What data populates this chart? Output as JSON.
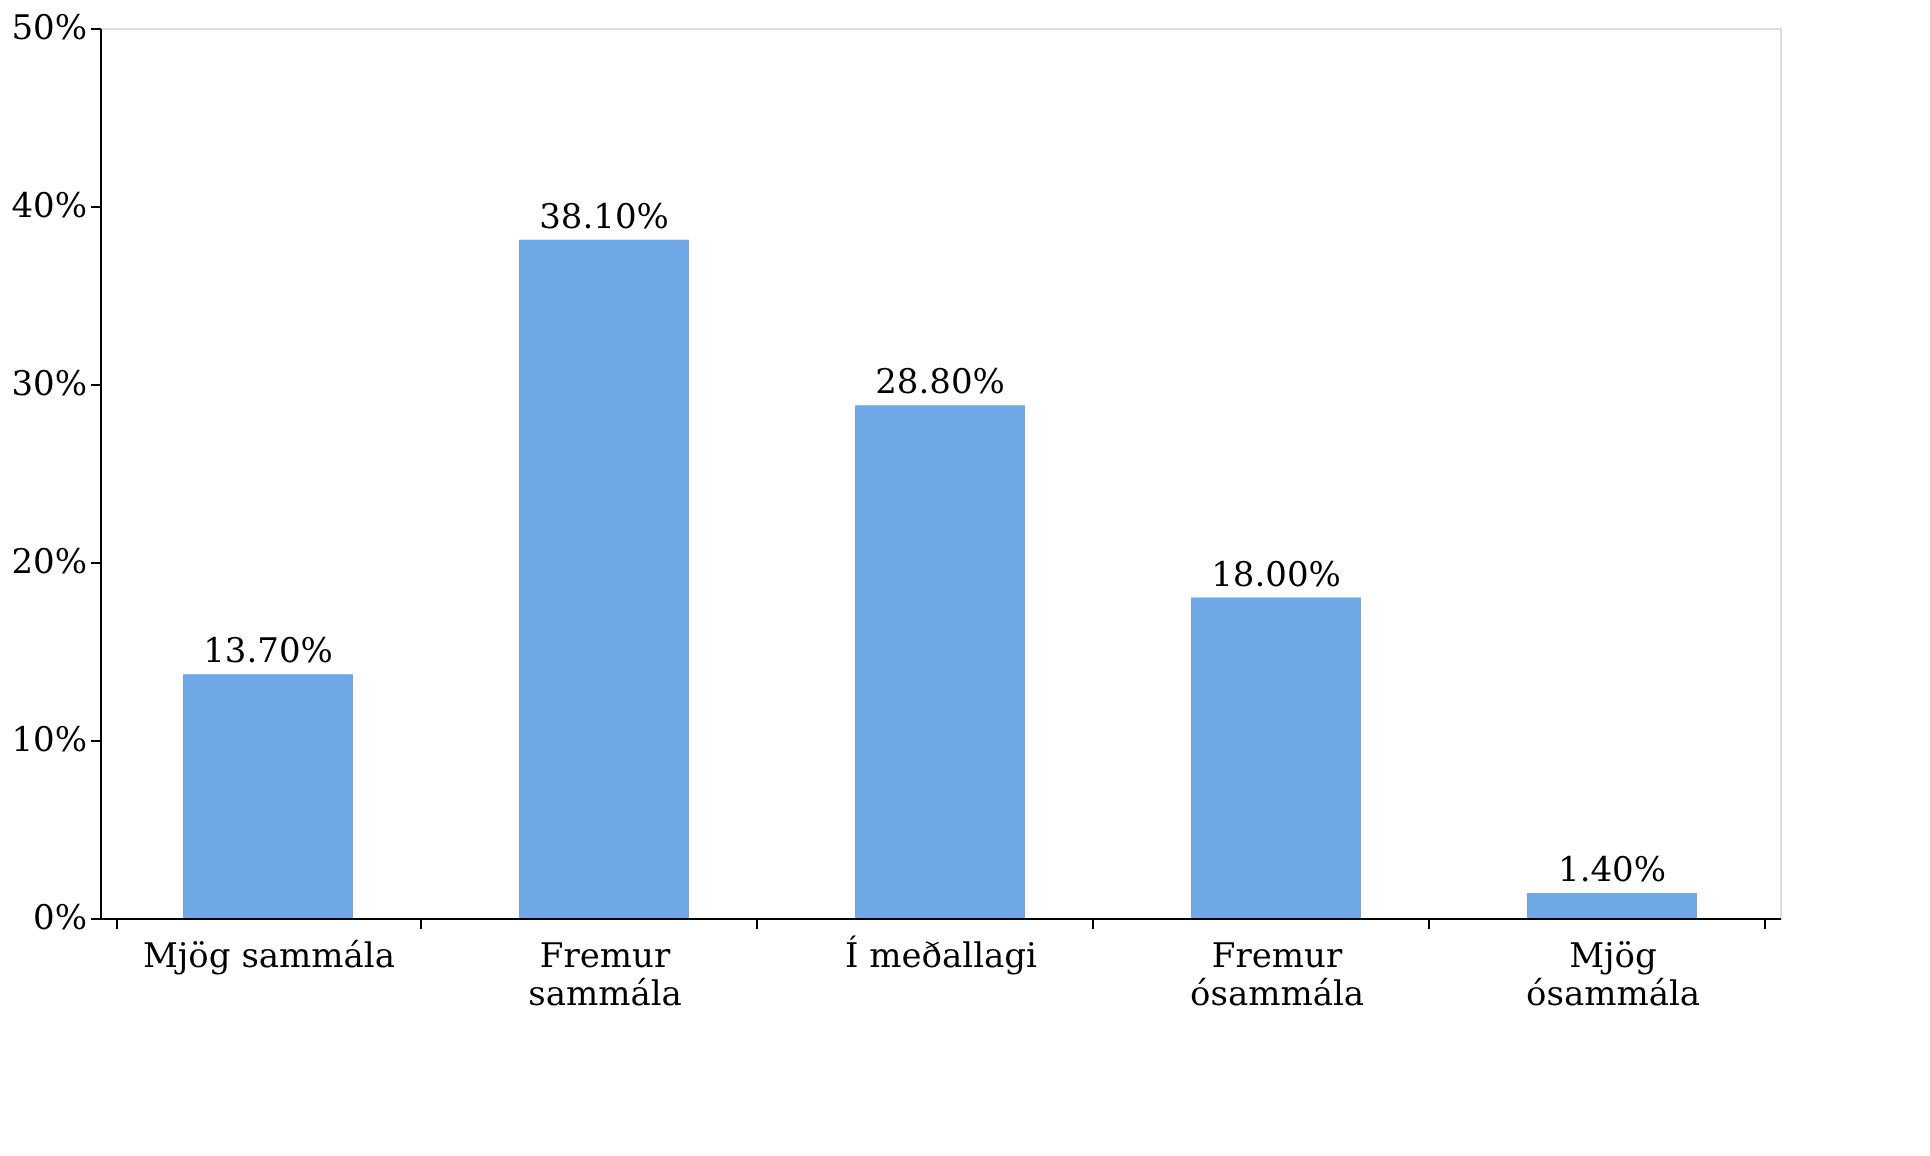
{
  "chart_data": {
    "type": "bar",
    "categories": [
      "Mjög sammála",
      "Fremur sammála",
      "Í meðallagi",
      "Fremur ósammála",
      "Mjög ósammála"
    ],
    "values": [
      13.7,
      38.1,
      28.8,
      18.0,
      1.4
    ],
    "value_labels": [
      "13.70%",
      "38.10%",
      "28.80%",
      "18.00%",
      "1.40%"
    ],
    "color": "#6fa8e6",
    "ylim": [
      0,
      50
    ],
    "yticks": [
      {
        "value": 0,
        "label": "0%"
      },
      {
        "value": 10,
        "label": "10%"
      },
      {
        "value": 20,
        "label": "20%"
      },
      {
        "value": 30,
        "label": "30%"
      },
      {
        "value": 40,
        "label": "40%"
      },
      {
        "value": 50,
        "label": "50%"
      }
    ],
    "grid": false
  }
}
